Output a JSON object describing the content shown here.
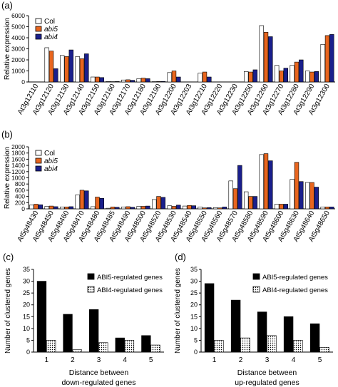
{
  "chart_data": [
    {
      "type": "bar",
      "panel_label": "(a)",
      "ylabel": "Relative expression",
      "ylim": [
        0,
        6000
      ],
      "yticks": [
        0,
        1000,
        2000,
        3000,
        4000,
        5000,
        6000
      ],
      "legend_position": "top-left",
      "categories": [
        "At3g12110",
        "At3g12120",
        "At3g12130",
        "At3g12140",
        "At3g12150",
        "At3g12160",
        "At3g12170",
        "At3g12180",
        "At3g12190",
        "At3g12200",
        "At3g12203",
        "At3g12210",
        "At3g12220",
        "At3g12230",
        "At3g12250",
        "At3g12260",
        "At3g12270",
        "At3g12280",
        "At3g12290",
        "At3g12300"
      ],
      "series": [
        {
          "name": "Col",
          "color": "#ffffff",
          "values": [
            0,
            3100,
            2400,
            2300,
            450,
            50,
            180,
            300,
            30,
            850,
            0,
            800,
            0,
            0,
            950,
            5100,
            1500,
            1500,
            1000,
            3400
          ]
        },
        {
          "name": "abi5",
          "color": "#e8651e",
          "values": [
            0,
            2800,
            2300,
            2100,
            450,
            30,
            200,
            350,
            40,
            1000,
            0,
            900,
            0,
            0,
            900,
            4500,
            1000,
            1800,
            900,
            4200
          ]
        },
        {
          "name": "abi4",
          "color": "#1a1f8c",
          "values": [
            0,
            1200,
            2900,
            2550,
            400,
            40,
            150,
            300,
            50,
            450,
            0,
            450,
            0,
            0,
            1100,
            4100,
            1250,
            2000,
            950,
            4300
          ]
        }
      ]
    },
    {
      "type": "bar",
      "panel_label": "(b)",
      "ylabel": "Relative expression",
      "ylim": [
        0,
        2000
      ],
      "yticks": [
        0,
        200,
        400,
        600,
        800,
        1000,
        1200,
        1400,
        1600,
        1800,
        2000
      ],
      "legend_position": "top-left",
      "categories": [
        "At5g48430",
        "At5g48450",
        "At5g48460",
        "At5g48470",
        "At5g48480",
        "At5g48485",
        "At5g48490",
        "At5g48500",
        "At5g48520",
        "At5g48530",
        "At5g48540",
        "At5g48550",
        "At5g48560",
        "At5g48570",
        "At5g48580",
        "At5g48590",
        "At5g48600",
        "At5g48630",
        "At5g48640",
        "At5g48650"
      ],
      "series": [
        {
          "name": "Col",
          "color": "#ffffff",
          "values": [
            120,
            80,
            60,
            450,
            70,
            20,
            60,
            80,
            300,
            100,
            90,
            60,
            40,
            900,
            550,
            1750,
            150,
            950,
            850,
            60
          ]
        },
        {
          "name": "abi5",
          "color": "#e8651e",
          "values": [
            150,
            90,
            60,
            600,
            380,
            60,
            70,
            80,
            400,
            80,
            110,
            30,
            30,
            650,
            400,
            1780,
            150,
            1500,
            850,
            60
          ]
        },
        {
          "name": "abi4",
          "color": "#1a1f8c",
          "values": [
            130,
            70,
            70,
            580,
            340,
            50,
            50,
            90,
            370,
            120,
            100,
            40,
            60,
            1400,
            400,
            1550,
            150,
            880,
            700,
            60
          ]
        }
      ]
    },
    {
      "type": "bar",
      "panel_label": "(c)",
      "ylabel": "Number of clustered genes",
      "xlabel": "Distance between down-regulated genes",
      "xlabel_lines": [
        "Distance between",
        "down-regulated genes"
      ],
      "ylim": [
        0,
        35
      ],
      "yticks": [
        0,
        5,
        10,
        15,
        20,
        25,
        30,
        35
      ],
      "legend_position": "top-right",
      "categories": [
        "1",
        "2",
        "3",
        "4",
        "5"
      ],
      "series": [
        {
          "name": "ABI5-regulated genes",
          "color": "#000000",
          "values": [
            30,
            16,
            18,
            6,
            7
          ]
        },
        {
          "name": "ABI4-regulated genes",
          "color": "#ffffff",
          "pattern": "dots",
          "values": [
            5,
            1,
            4,
            5,
            3
          ]
        }
      ]
    },
    {
      "type": "bar",
      "panel_label": "(d)",
      "ylabel": "Number of clustered genes",
      "xlabel": "Distance between up-regulated genes",
      "xlabel_lines": [
        "Distance between",
        "up-regulated genes"
      ],
      "ylim": [
        0,
        35
      ],
      "yticks": [
        0,
        5,
        10,
        15,
        20,
        25,
        30,
        35
      ],
      "legend_position": "top-right",
      "categories": [
        "1",
        "2",
        "3",
        "4",
        "5"
      ],
      "series": [
        {
          "name": "ABI5-regulated genes",
          "color": "#000000",
          "values": [
            29,
            22,
            17,
            15,
            12
          ]
        },
        {
          "name": "ABI4-regulated genes",
          "color": "#ffffff",
          "pattern": "dots",
          "values": [
            5,
            6,
            7,
            5,
            2
          ]
        }
      ]
    }
  ]
}
